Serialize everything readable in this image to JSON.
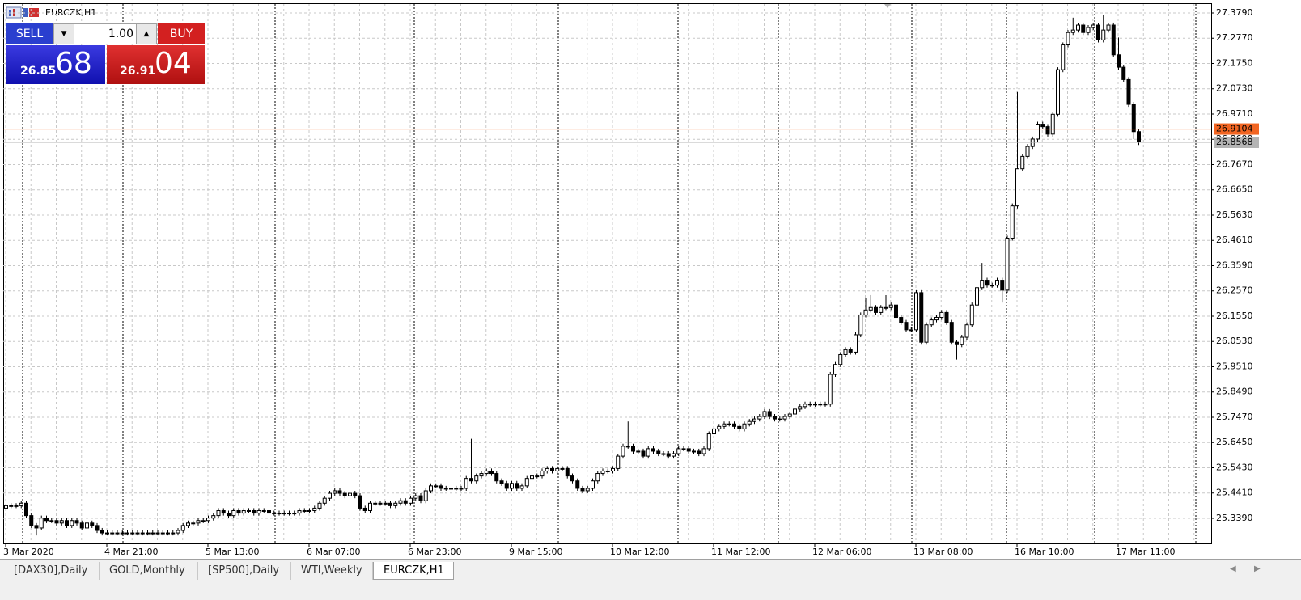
{
  "chart_data": {
    "type": "candlestick",
    "title": "EURCZK,H1",
    "categories": [
      "3 Mar 2020",
      null,
      null,
      null,
      null,
      null,
      null,
      null,
      null,
      null,
      null,
      null,
      null,
      null,
      null,
      null,
      null,
      null,
      null,
      null,
      "4 Mar 21:00",
      null,
      null,
      null,
      null,
      null,
      null,
      null,
      null,
      null,
      null,
      null,
      null,
      null,
      null,
      null,
      null,
      null,
      null,
      null,
      "5 Mar 13:00",
      null,
      null,
      null,
      null,
      null,
      null,
      null,
      null,
      null,
      null,
      null,
      null,
      null,
      null,
      null,
      null,
      null,
      null,
      null,
      "6 Mar 07:00",
      null,
      null,
      null,
      null,
      null,
      null,
      null,
      null,
      null,
      null,
      null,
      null,
      null,
      null,
      null,
      null,
      null,
      null,
      null,
      "6 Mar 23:00",
      null,
      null,
      null,
      null,
      null,
      null,
      null,
      null,
      null,
      null,
      null,
      null,
      null,
      null,
      null,
      null,
      null,
      null,
      null,
      "9 Mar 15:00",
      null,
      null,
      null,
      null,
      null,
      null,
      null,
      null,
      null,
      null,
      null,
      null,
      null,
      null,
      null,
      null,
      null,
      null,
      null,
      "10 Mar 12:00",
      null,
      null,
      null,
      null,
      null,
      null,
      null,
      null,
      null,
      null,
      null,
      null,
      null,
      null,
      null,
      null,
      null,
      null,
      null,
      "11 Mar 12:00",
      null,
      null,
      null,
      null,
      null,
      null,
      null,
      null,
      null,
      null,
      null,
      null,
      null,
      null,
      null,
      null,
      null,
      null,
      null,
      "12 Mar 06:00",
      null,
      null,
      null,
      null,
      null,
      null,
      null,
      null,
      null,
      null,
      null,
      null,
      null,
      null,
      null,
      null,
      null,
      null,
      null,
      "13 Mar 08:00",
      null,
      null,
      null,
      null,
      null,
      null,
      null,
      null,
      null,
      null,
      null,
      null,
      null,
      null,
      null,
      null,
      null,
      null,
      null,
      "16 Mar 10:00",
      null,
      null,
      null,
      null,
      null,
      null,
      null,
      null,
      null,
      null,
      null,
      null,
      null,
      null,
      null,
      null,
      null,
      null,
      null,
      "17 Mar 11:00",
      null,
      null,
      null,
      null
    ],
    "open": [
      25.38,
      25.39,
      25.39,
      25.39,
      25.4,
      25.35,
      25.31,
      25.3,
      25.34,
      25.33,
      25.33,
      25.32,
      25.33,
      25.31,
      25.33,
      25.32,
      25.3,
      25.32,
      25.31,
      25.29,
      25.28,
      25.28,
      25.28,
      25.28,
      25.28,
      25.28,
      25.28,
      25.28,
      25.28,
      25.28,
      25.28,
      25.28,
      25.28,
      25.28,
      25.28,
      25.29,
      25.31,
      25.32,
      25.32,
      25.33,
      25.33,
      25.34,
      25.35,
      25.37,
      25.36,
      25.35,
      25.37,
      25.36,
      25.37,
      25.37,
      25.36,
      25.37,
      25.37,
      25.36,
      25.36,
      25.36,
      25.36,
      25.36,
      25.36,
      25.37,
      25.37,
      25.37,
      25.38,
      25.4,
      25.42,
      25.44,
      25.45,
      25.44,
      25.43,
      25.44,
      25.43,
      25.38,
      25.37,
      25.4,
      25.4,
      25.4,
      25.4,
      25.39,
      25.4,
      25.41,
      25.4,
      25.42,
      25.43,
      25.41,
      25.45,
      25.47,
      25.47,
      25.46,
      25.46,
      25.46,
      25.46,
      25.46,
      25.5,
      25.49,
      25.51,
      25.52,
      25.53,
      25.52,
      25.49,
      25.48,
      25.46,
      25.48,
      25.46,
      25.47,
      25.5,
      25.51,
      25.51,
      25.53,
      25.54,
      25.53,
      25.54,
      25.54,
      25.51,
      25.49,
      25.46,
      25.45,
      25.46,
      25.49,
      25.52,
      25.53,
      25.53,
      25.54,
      25.59,
      25.63,
      25.63,
      25.61,
      25.61,
      25.59,
      25.62,
      25.61,
      25.6,
      25.6,
      25.59,
      25.6,
      25.62,
      25.62,
      25.61,
      25.61,
      25.6,
      25.62,
      25.68,
      25.7,
      25.71,
      25.72,
      25.72,
      25.71,
      25.7,
      25.72,
      25.73,
      25.74,
      25.75,
      25.77,
      25.75,
      25.74,
      25.74,
      25.75,
      25.76,
      25.78,
      25.79,
      25.8,
      25.8,
      25.8,
      25.8,
      25.8,
      25.92,
      25.96,
      26.0,
      26.02,
      26.01,
      26.08,
      26.16,
      26.18,
      26.19,
      26.17,
      26.19,
      26.19,
      26.2,
      26.15,
      26.13,
      26.1,
      26.1,
      26.25,
      26.05,
      26.12,
      26.14,
      26.15,
      26.17,
      26.13,
      26.05,
      26.04,
      26.07,
      26.12,
      26.2,
      26.27,
      26.3,
      26.28,
      26.28,
      26.3,
      26.26,
      26.47,
      26.6,
      26.75,
      26.8,
      26.84,
      26.87,
      26.93,
      26.92,
      26.89,
      26.97,
      27.15,
      27.25,
      27.3,
      27.31,
      27.33,
      27.3,
      27.32,
      27.33,
      27.27,
      27.31,
      27.33,
      27.21,
      27.16,
      27.11,
      27.01,
      26.9
    ],
    "high": [
      25.4,
      25.4,
      25.4,
      25.41,
      25.41,
      25.36,
      25.32,
      25.35,
      25.35,
      25.34,
      25.34,
      25.34,
      25.34,
      25.34,
      25.34,
      25.33,
      25.33,
      25.33,
      25.32,
      25.3,
      25.29,
      25.29,
      25.29,
      25.29,
      25.29,
      25.29,
      25.29,
      25.29,
      25.29,
      25.29,
      25.29,
      25.29,
      25.29,
      25.29,
      25.3,
      25.32,
      25.33,
      25.33,
      25.34,
      25.34,
      25.35,
      25.36,
      25.38,
      25.38,
      25.37,
      25.38,
      25.38,
      25.38,
      25.38,
      25.38,
      25.38,
      25.38,
      25.38,
      25.37,
      25.37,
      25.37,
      25.37,
      25.37,
      25.38,
      25.38,
      25.38,
      25.39,
      25.41,
      25.43,
      25.45,
      25.46,
      25.46,
      25.45,
      25.45,
      25.45,
      25.44,
      25.39,
      25.41,
      25.41,
      25.41,
      25.41,
      25.41,
      25.41,
      25.42,
      25.42,
      25.43,
      25.44,
      25.44,
      25.46,
      25.48,
      25.48,
      25.48,
      25.47,
      25.47,
      25.47,
      25.47,
      25.51,
      25.66,
      25.52,
      25.53,
      25.54,
      25.54,
      25.53,
      25.5,
      25.49,
      25.49,
      25.49,
      25.48,
      25.51,
      25.52,
      25.52,
      25.54,
      25.55,
      25.55,
      25.55,
      25.55,
      25.55,
      25.52,
      25.5,
      25.47,
      25.47,
      25.5,
      25.53,
      25.54,
      25.54,
      25.55,
      25.6,
      25.64,
      25.73,
      25.64,
      25.62,
      25.62,
      25.63,
      25.63,
      25.62,
      25.61,
      25.61,
      25.61,
      25.63,
      25.63,
      25.63,
      25.62,
      25.62,
      25.63,
      25.69,
      25.71,
      25.72,
      25.73,
      25.73,
      25.73,
      25.72,
      25.73,
      25.74,
      25.75,
      25.76,
      25.78,
      25.78,
      25.76,
      25.75,
      25.76,
      25.77,
      25.79,
      25.8,
      25.81,
      25.81,
      25.81,
      25.81,
      25.81,
      25.93,
      25.97,
      26.01,
      26.03,
      26.03,
      26.09,
      26.17,
      26.23,
      26.24,
      26.2,
      26.2,
      26.24,
      26.21,
      26.21,
      26.16,
      26.14,
      26.11,
      26.26,
      26.26,
      26.13,
      26.15,
      26.16,
      26.18,
      26.18,
      26.14,
      26.06,
      26.08,
      26.13,
      26.21,
      26.28,
      26.37,
      26.31,
      26.29,
      26.31,
      26.31,
      26.48,
      26.61,
      27.06,
      26.81,
      26.85,
      26.88,
      26.94,
      26.94,
      26.93,
      26.98,
      27.16,
      27.26,
      27.31,
      27.36,
      27.34,
      27.34,
      27.33,
      27.34,
      27.34,
      27.37,
      27.34,
      27.34,
      27.28,
      27.17,
      27.12,
      27.02,
      26.91
    ],
    "low": [
      25.37,
      25.38,
      25.38,
      25.38,
      25.34,
      25.3,
      25.27,
      25.29,
      25.32,
      25.32,
      25.31,
      25.31,
      25.3,
      25.3,
      25.31,
      25.29,
      25.29,
      25.3,
      25.28,
      25.27,
      25.27,
      25.27,
      25.27,
      25.27,
      25.27,
      25.27,
      25.27,
      25.27,
      25.27,
      25.27,
      25.27,
      25.27,
      25.27,
      25.27,
      25.27,
      25.28,
      25.3,
      25.31,
      25.31,
      25.32,
      25.32,
      25.33,
      25.34,
      25.35,
      25.34,
      25.34,
      25.35,
      25.35,
      25.36,
      25.35,
      25.35,
      25.36,
      25.35,
      25.35,
      25.35,
      25.35,
      25.35,
      25.35,
      25.35,
      25.36,
      25.36,
      25.36,
      25.37,
      25.39,
      25.41,
      25.43,
      25.43,
      25.42,
      25.42,
      25.42,
      25.37,
      25.36,
      25.36,
      25.39,
      25.39,
      25.39,
      25.38,
      25.38,
      25.39,
      25.39,
      25.39,
      25.41,
      25.4,
      25.4,
      25.44,
      25.46,
      25.45,
      25.45,
      25.45,
      25.45,
      25.45,
      25.45,
      25.48,
      25.48,
      25.5,
      25.51,
      25.51,
      25.48,
      25.47,
      25.45,
      25.45,
      25.45,
      25.45,
      25.46,
      25.49,
      25.5,
      25.5,
      25.52,
      25.52,
      25.52,
      25.53,
      25.5,
      25.48,
      25.45,
      25.44,
      25.44,
      25.45,
      25.48,
      25.51,
      25.52,
      25.52,
      25.53,
      25.58,
      25.62,
      25.6,
      25.6,
      25.58,
      25.58,
      25.6,
      25.59,
      25.59,
      25.58,
      25.58,
      25.59,
      25.61,
      25.6,
      25.6,
      25.59,
      25.59,
      25.61,
      25.67,
      25.69,
      25.7,
      25.71,
      25.7,
      25.69,
      25.69,
      25.71,
      25.72,
      25.73,
      25.74,
      25.74,
      25.73,
      25.73,
      25.73,
      25.74,
      25.75,
      25.77,
      25.78,
      25.79,
      25.79,
      25.79,
      25.79,
      25.79,
      25.91,
      25.95,
      25.99,
      26.0,
      26.0,
      26.07,
      26.15,
      26.17,
      26.16,
      26.16,
      26.18,
      26.18,
      26.14,
      26.12,
      26.09,
      26.09,
      26.09,
      26.04,
      26.04,
      26.11,
      26.13,
      26.14,
      26.12,
      26.04,
      25.98,
      26.03,
      26.06,
      26.11,
      26.19,
      26.26,
      26.27,
      26.27,
      26.27,
      26.21,
      26.25,
      26.46,
      26.59,
      26.74,
      26.79,
      26.83,
      26.86,
      26.91,
      26.88,
      26.88,
      26.96,
      27.14,
      27.24,
      27.29,
      27.3,
      27.29,
      27.29,
      27.31,
      27.26,
      27.26,
      27.3,
      27.2,
      27.15,
      27.1,
      27.0,
      26.87,
      26.846
    ],
    "close": [
      25.39,
      25.39,
      25.39,
      25.4,
      25.35,
      25.31,
      25.3,
      25.34,
      25.33,
      25.33,
      25.32,
      25.33,
      25.31,
      25.33,
      25.32,
      25.3,
      25.32,
      25.31,
      25.29,
      25.28,
      25.28,
      25.28,
      25.28,
      25.28,
      25.28,
      25.28,
      25.28,
      25.28,
      25.28,
      25.28,
      25.28,
      25.28,
      25.28,
      25.28,
      25.29,
      25.31,
      25.32,
      25.32,
      25.33,
      25.33,
      25.34,
      25.35,
      25.37,
      25.36,
      25.35,
      25.37,
      25.36,
      25.37,
      25.37,
      25.36,
      25.37,
      25.37,
      25.36,
      25.36,
      25.36,
      25.36,
      25.36,
      25.36,
      25.37,
      25.37,
      25.37,
      25.38,
      25.4,
      25.42,
      25.44,
      25.45,
      25.44,
      25.43,
      25.44,
      25.43,
      25.38,
      25.37,
      25.4,
      25.4,
      25.4,
      25.4,
      25.39,
      25.4,
      25.41,
      25.4,
      25.42,
      25.43,
      25.41,
      25.45,
      25.47,
      25.47,
      25.46,
      25.46,
      25.46,
      25.46,
      25.46,
      25.5,
      25.49,
      25.51,
      25.52,
      25.53,
      25.52,
      25.49,
      25.48,
      25.46,
      25.48,
      25.46,
      25.47,
      25.5,
      25.51,
      25.51,
      25.53,
      25.54,
      25.53,
      25.54,
      25.54,
      25.51,
      25.49,
      25.46,
      25.45,
      25.46,
      25.49,
      25.52,
      25.53,
      25.53,
      25.54,
      25.59,
      25.63,
      25.63,
      25.61,
      25.61,
      25.59,
      25.62,
      25.61,
      25.6,
      25.6,
      25.59,
      25.6,
      25.62,
      25.62,
      25.61,
      25.61,
      25.6,
      25.62,
      25.68,
      25.7,
      25.71,
      25.72,
      25.72,
      25.71,
      25.7,
      25.72,
      25.73,
      25.74,
      25.75,
      25.77,
      25.75,
      25.74,
      25.74,
      25.75,
      25.76,
      25.78,
      25.79,
      25.8,
      25.8,
      25.8,
      25.8,
      25.8,
      25.92,
      25.96,
      26.0,
      26.02,
      26.01,
      26.08,
      26.16,
      26.18,
      26.19,
      26.17,
      26.19,
      26.19,
      26.2,
      26.15,
      26.13,
      26.1,
      26.1,
      26.25,
      26.05,
      26.12,
      26.14,
      26.15,
      26.17,
      26.13,
      26.05,
      26.04,
      26.07,
      26.12,
      26.2,
      26.27,
      26.3,
      26.28,
      26.28,
      26.3,
      26.26,
      26.47,
      26.6,
      26.75,
      26.8,
      26.84,
      26.87,
      26.93,
      26.92,
      26.89,
      26.97,
      27.15,
      27.25,
      27.3,
      27.31,
      27.33,
      27.3,
      27.32,
      27.33,
      27.27,
      27.31,
      27.33,
      27.21,
      27.16,
      27.11,
      27.01,
      26.9,
      26.857
    ],
    "bull_color": "#ffffff",
    "bear_color": "#000000",
    "outline_color": "#000000",
    "ylim": [
      25.2378,
      27.4149
    ],
    "yticks": [
      {
        "value": 27.379,
        "label": "27.3790"
      },
      {
        "value": 27.277,
        "label": "27.2770"
      },
      {
        "value": 27.175,
        "label": "27.1750"
      },
      {
        "value": 27.073,
        "label": "27.0730"
      },
      {
        "value": 26.971,
        "label": "26.9710"
      },
      {
        "value": 26.869,
        "label": "26.8690"
      },
      {
        "value": 26.767,
        "label": "26.7670"
      },
      {
        "value": 26.665,
        "label": "26.6650"
      },
      {
        "value": 26.563,
        "label": "26.5630"
      },
      {
        "value": 26.461,
        "label": "26.4610"
      },
      {
        "value": 26.359,
        "label": "26.3590"
      },
      {
        "value": 26.257,
        "label": "26.2570"
      },
      {
        "value": 26.155,
        "label": "26.1550"
      },
      {
        "value": 26.053,
        "label": "26.0530"
      },
      {
        "value": 25.951,
        "label": "25.9510"
      },
      {
        "value": 25.849,
        "label": "25.8490"
      },
      {
        "value": 25.747,
        "label": "25.7470"
      },
      {
        "value": 25.645,
        "label": "25.6450"
      },
      {
        "value": 25.543,
        "label": "25.5430"
      },
      {
        "value": 25.441,
        "label": "25.4410"
      },
      {
        "value": 25.339,
        "label": "25.3390"
      }
    ],
    "grid": true,
    "ask_line": {
      "value": 26.9104,
      "color": "#f26522"
    },
    "bid_line": {
      "value": 26.8568,
      "color": "#b4b4b4"
    }
  },
  "trade_panel": {
    "sell": "SELL",
    "buy": "BUY",
    "volume": "1.00",
    "sell_price_small": "26.85",
    "sell_price_big": "68",
    "buy_price_small": "26.91",
    "buy_price_big": "04"
  },
  "tabs": [
    "[DAX30],Daily",
    "GOLD,Monthly",
    "[SP500],Daily",
    "WTI,Weekly",
    "EURCZK,H1"
  ]
}
